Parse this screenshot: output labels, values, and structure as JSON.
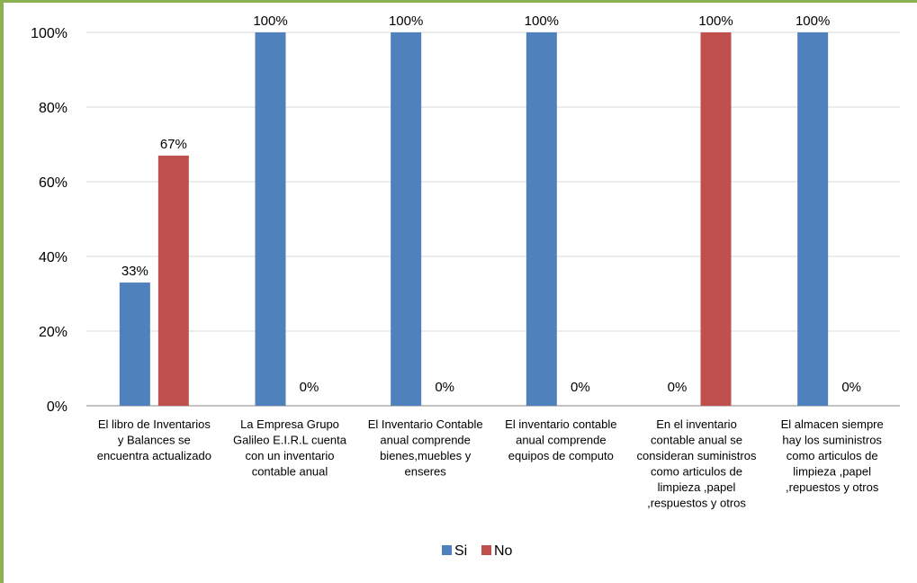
{
  "chart_data": {
    "type": "bar",
    "categories": [
      [
        "El libro de Inventarios",
        "y Balances se",
        "encuentra actualizado"
      ],
      [
        "La Empresa Grupo",
        "Galileo E.I.R.L cuenta",
        "con un inventario",
        "contable anual"
      ],
      [
        "El Inventario Contable",
        "anual comprende",
        "bienes,muebles y",
        "enseres"
      ],
      [
        "El inventario contable",
        "anual comprende",
        "equipos de computo"
      ],
      [
        "En el inventario",
        "contable anual se",
        "consideran suministros",
        "como   articulos de",
        "limpieza ,papel",
        ",respuestos y otros"
      ],
      [
        "El almacen siempre",
        "hay los suministros",
        "como articulos de",
        "limpieza ,papel",
        ",repuestos y otros"
      ]
    ],
    "series": [
      {
        "name": "Si",
        "color": "#4f81bd",
        "values": [
          33,
          100,
          100,
          100,
          0,
          100
        ],
        "labels": [
          "33%",
          "100%",
          "100%",
          "100%",
          "0%",
          "100%"
        ]
      },
      {
        "name": "No",
        "color": "#c0504d",
        "values": [
          67,
          0,
          0,
          0,
          100,
          0
        ],
        "labels": [
          "67%",
          "0%",
          "0%",
          "0%",
          "100%",
          "0%"
        ]
      }
    ],
    "yticks": [
      "0%",
      "20%",
      "40%",
      "60%",
      "80%",
      "100%"
    ],
    "ylim": [
      0,
      100
    ],
    "grid": true,
    "legend": "bottom"
  }
}
